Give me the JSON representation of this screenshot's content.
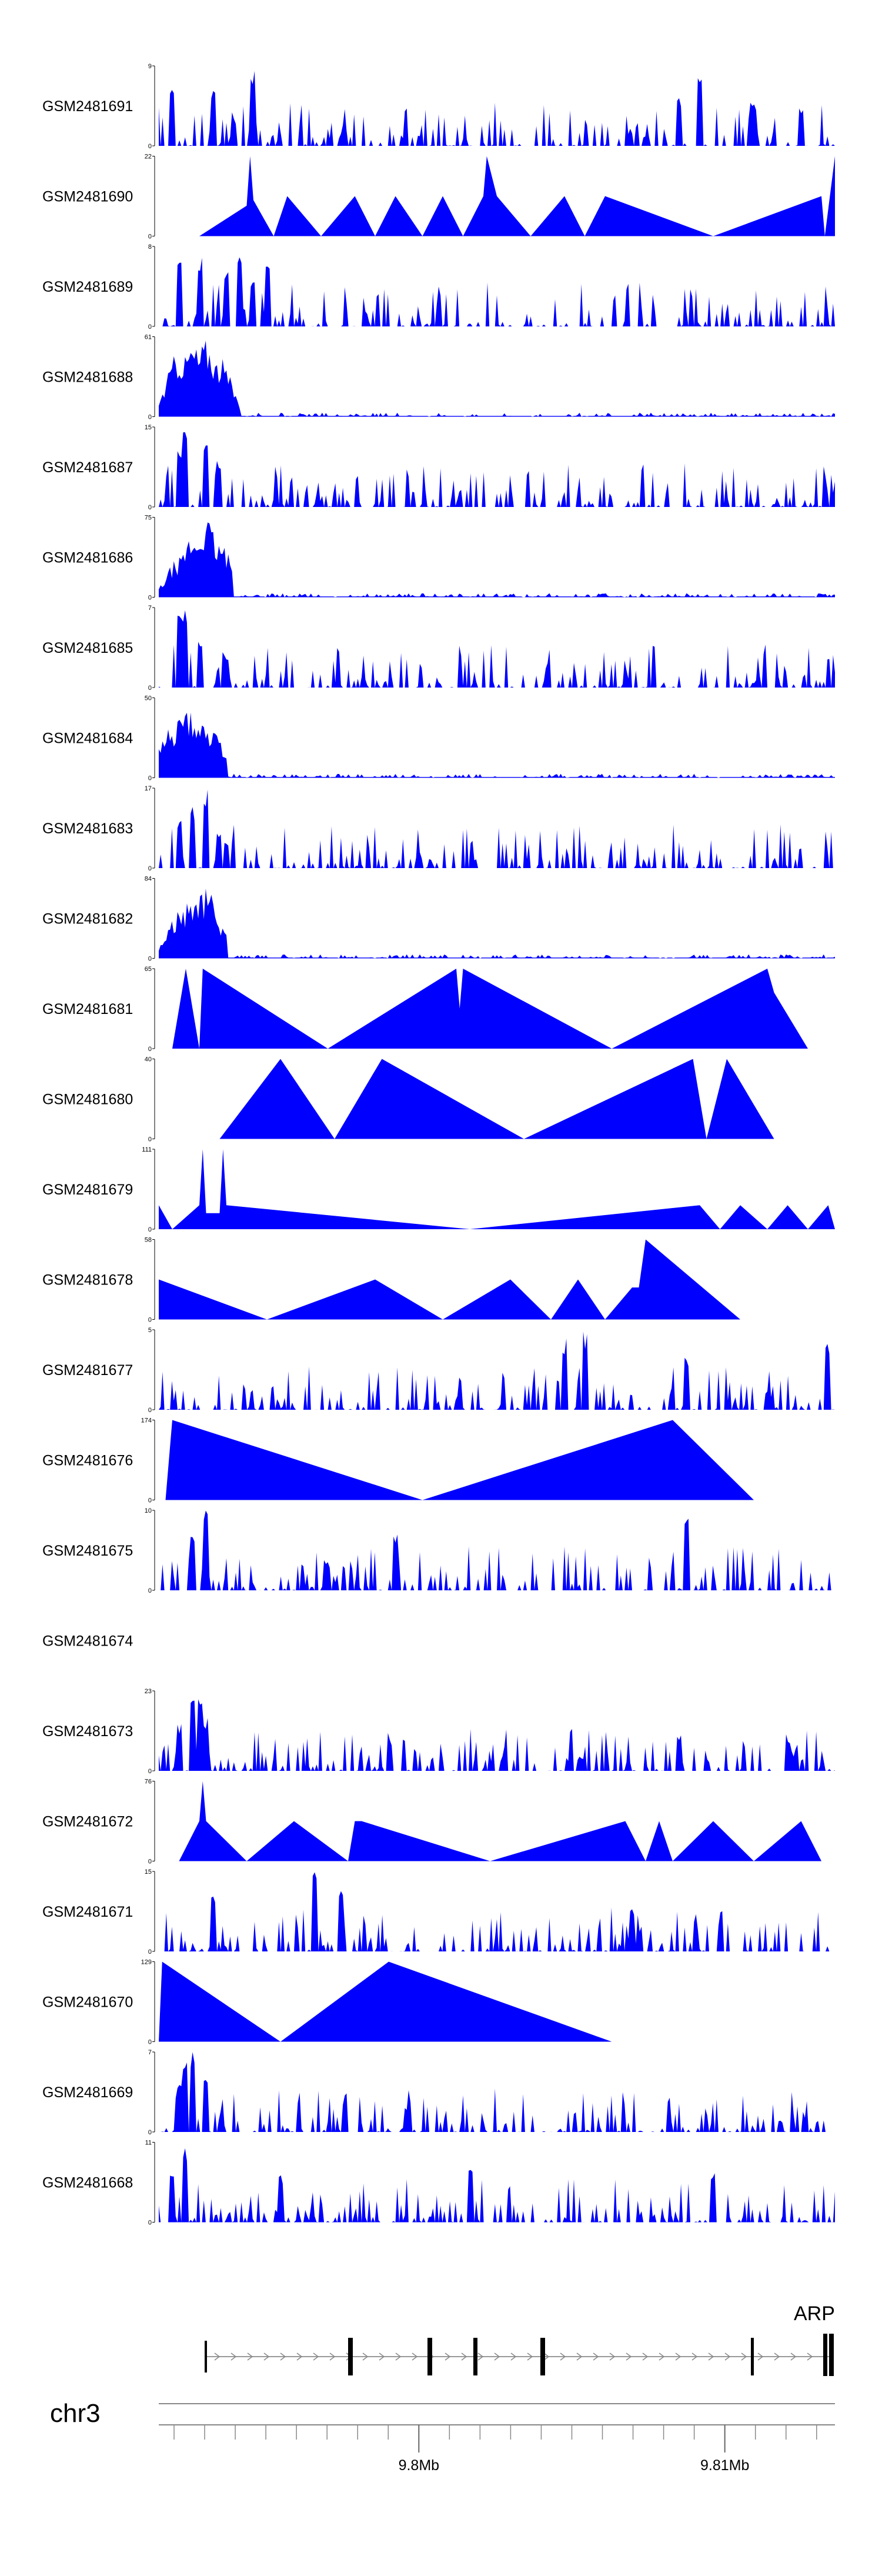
{
  "chart_data": {
    "type": "area",
    "title": "",
    "chromosome": "chr3",
    "gene_label": "ARP",
    "x_axis": {
      "ticks": [
        {
          "pos": 9.8,
          "label": "9.8Mb"
        },
        {
          "pos": 9.81,
          "label": "9.81Mb"
        }
      ],
      "range": [
        9.7915,
        9.8136
      ]
    },
    "fill_color": "#0000ff",
    "tracks": [
      {
        "name": "GSM2481691",
        "ymax": 9,
        "profile": "noise",
        "seed": 91,
        "peaks": [
          [
            0.02,
            0.85
          ],
          [
            0.08,
            0.7
          ],
          [
            0.14,
            0.95
          ],
          [
            0.77,
            0.6
          ],
          [
            0.8,
            1.0
          ],
          [
            0.88,
            0.55
          ],
          [
            0.95,
            0.5
          ]
        ]
      },
      {
        "name": "GSM2481690",
        "ymax": 22,
        "profile": "tri",
        "points": [
          [
            0.06,
            0
          ],
          [
            0.13,
            0.38
          ],
          [
            0.135,
            1.0
          ],
          [
            0.14,
            0.45
          ],
          [
            0.17,
            0
          ],
          [
            0.19,
            0.5
          ],
          [
            0.24,
            0
          ],
          [
            0.29,
            0.5
          ],
          [
            0.32,
            0
          ],
          [
            0.35,
            0.5
          ],
          [
            0.39,
            0
          ],
          [
            0.42,
            0.5
          ],
          [
            0.45,
            0
          ],
          [
            0.48,
            0.5
          ],
          [
            0.485,
            1.0
          ],
          [
            0.5,
            0.5
          ],
          [
            0.55,
            0
          ],
          [
            0.6,
            0.5
          ],
          [
            0.63,
            0
          ],
          [
            0.66,
            0.5
          ],
          [
            0.82,
            0
          ],
          [
            0.98,
            0.5
          ],
          [
            0.985,
            0
          ],
          [
            1.0,
            1.0
          ]
        ]
      },
      {
        "name": "GSM2481689",
        "ymax": 8,
        "profile": "noise",
        "seed": 89,
        "peaks": [
          [
            0.03,
            0.8
          ],
          [
            0.06,
            0.9
          ],
          [
            0.1,
            0.7
          ],
          [
            0.12,
            0.95
          ],
          [
            0.14,
            0.6
          ],
          [
            0.16,
            0.75
          ]
        ]
      },
      {
        "name": "GSM2481688",
        "ymax": 61,
        "profile": "burst",
        "seed": 88,
        "burst": [
          0.0,
          0.12
        ],
        "bumps": [
          [
            0.03,
            0.85
          ],
          [
            0.05,
            0.95
          ],
          [
            0.07,
            1.0
          ],
          [
            0.09,
            0.75
          ]
        ]
      },
      {
        "name": "GSM2481687",
        "ymax": 15,
        "profile": "noise",
        "seed": 87,
        "peaks": [
          [
            0.03,
            0.7
          ],
          [
            0.04,
            1.0
          ],
          [
            0.07,
            0.8
          ],
          [
            0.09,
            0.6
          ]
        ]
      },
      {
        "name": "GSM2481686",
        "ymax": 75,
        "profile": "burst",
        "seed": 86,
        "burst": [
          0.0,
          0.11
        ],
        "bumps": [
          [
            0.03,
            0.5
          ],
          [
            0.05,
            0.8
          ],
          [
            0.07,
            1.0
          ],
          [
            0.09,
            0.7
          ]
        ]
      },
      {
        "name": "GSM2481685",
        "ymax": 7,
        "profile": "noise",
        "seed": 85,
        "peaks": [
          [
            0.03,
            0.9
          ],
          [
            0.04,
            1.0
          ],
          [
            0.06,
            0.6
          ],
          [
            0.1,
            0.4
          ]
        ]
      },
      {
        "name": "GSM2481684",
        "ymax": 50,
        "profile": "burst",
        "seed": 84,
        "burst": [
          0.0,
          0.1
        ],
        "bumps": [
          [
            0.02,
            0.7
          ],
          [
            0.04,
            0.9
          ],
          [
            0.06,
            0.85
          ],
          [
            0.08,
            0.6
          ]
        ]
      },
      {
        "name": "GSM2481683",
        "ymax": 17,
        "profile": "noise",
        "seed": 83,
        "peaks": [
          [
            0.03,
            0.6
          ],
          [
            0.05,
            0.8
          ],
          [
            0.07,
            1.0
          ],
          [
            0.09,
            0.5
          ]
        ]
      },
      {
        "name": "GSM2481682",
        "ymax": 84,
        "profile": "burst",
        "seed": 82,
        "burst": [
          0.0,
          0.1
        ],
        "bumps": [
          [
            0.03,
            0.6
          ],
          [
            0.05,
            0.8
          ],
          [
            0.07,
            0.9
          ],
          [
            0.08,
            0.6
          ]
        ]
      },
      {
        "name": "GSM2481681",
        "ymax": 65,
        "profile": "tri",
        "points": [
          [
            0.02,
            0
          ],
          [
            0.04,
            1.0
          ],
          [
            0.06,
            0
          ],
          [
            0.065,
            1.0
          ],
          [
            0.25,
            0
          ],
          [
            0.44,
            1.0
          ],
          [
            0.445,
            0.5
          ],
          [
            0.45,
            1.0
          ],
          [
            0.67,
            0
          ],
          [
            0.9,
            1.0
          ],
          [
            0.91,
            0.7
          ],
          [
            0.96,
            0
          ]
        ]
      },
      {
        "name": "GSM2481680",
        "ymax": 40,
        "profile": "tri",
        "points": [
          [
            0.09,
            0
          ],
          [
            0.18,
            1.0
          ],
          [
            0.26,
            0
          ],
          [
            0.33,
            1.0
          ],
          [
            0.54,
            0
          ],
          [
            0.79,
            1.0
          ],
          [
            0.81,
            0
          ],
          [
            0.84,
            1.0
          ],
          [
            0.91,
            0
          ]
        ]
      },
      {
        "name": "GSM2481679",
        "ymax": 111,
        "profile": "tri",
        "points": [
          [
            0.0,
            0.3
          ],
          [
            0.02,
            0
          ],
          [
            0.06,
            0.3
          ],
          [
            0.065,
            1.0
          ],
          [
            0.07,
            0.2
          ],
          [
            0.09,
            0.2
          ],
          [
            0.095,
            1.0
          ],
          [
            0.1,
            0.3
          ],
          [
            0.46,
            0
          ],
          [
            0.8,
            0.3
          ],
          [
            0.83,
            0
          ],
          [
            0.86,
            0.3
          ],
          [
            0.9,
            0
          ],
          [
            0.93,
            0.3
          ],
          [
            0.96,
            0
          ],
          [
            0.99,
            0.3
          ],
          [
            1.0,
            0
          ]
        ]
      },
      {
        "name": "GSM2481678",
        "ymax": 58,
        "profile": "tri",
        "points": [
          [
            0.0,
            0.5
          ],
          [
            0.16,
            0
          ],
          [
            0.32,
            0.5
          ],
          [
            0.42,
            0
          ],
          [
            0.52,
            0.5
          ],
          [
            0.58,
            0
          ],
          [
            0.62,
            0.5
          ],
          [
            0.66,
            0
          ],
          [
            0.7,
            0.4
          ],
          [
            0.71,
            0.4
          ],
          [
            0.72,
            1.0
          ],
          [
            0.86,
            0
          ]
        ]
      },
      {
        "name": "GSM2481677",
        "ymax": 5,
        "profile": "noise",
        "seed": 77,
        "peaks": [
          [
            0.6,
            0.9
          ],
          [
            0.63,
            1.0
          ],
          [
            0.78,
            0.7
          ],
          [
            0.99,
            0.9
          ]
        ]
      },
      {
        "name": "GSM2481676",
        "ymax": 174,
        "profile": "tri",
        "points": [
          [
            0.01,
            0
          ],
          [
            0.02,
            1.0
          ],
          [
            0.39,
            0
          ],
          [
            0.76,
            1.0
          ],
          [
            0.88,
            0
          ]
        ]
      },
      {
        "name": "GSM2481675",
        "ymax": 10,
        "profile": "noise",
        "seed": 75,
        "peaks": [
          [
            0.05,
            0.7
          ],
          [
            0.07,
            1.0
          ],
          [
            0.35,
            0.7
          ],
          [
            0.78,
            1.0
          ]
        ]
      },
      {
        "name": "GSM2481674",
        "ymax": null,
        "profile": "empty"
      },
      {
        "name": "GSM2481673",
        "ymax": 23,
        "profile": "noise",
        "seed": 73,
        "peaks": [
          [
            0.03,
            0.6
          ],
          [
            0.05,
            0.9
          ],
          [
            0.06,
            1.0
          ],
          [
            0.07,
            0.7
          ],
          [
            0.77,
            0.5
          ]
        ]
      },
      {
        "name": "GSM2481672",
        "ymax": 76,
        "profile": "tri",
        "points": [
          [
            0.03,
            0
          ],
          [
            0.06,
            0.5
          ],
          [
            0.065,
            1.0
          ],
          [
            0.07,
            0.5
          ],
          [
            0.13,
            0
          ],
          [
            0.2,
            0.5
          ],
          [
            0.28,
            0
          ],
          [
            0.29,
            0.5
          ],
          [
            0.3,
            0.5
          ],
          [
            0.49,
            0
          ],
          [
            0.69,
            0.5
          ],
          [
            0.72,
            0
          ],
          [
            0.74,
            0.5
          ],
          [
            0.76,
            0
          ],
          [
            0.82,
            0.5
          ],
          [
            0.88,
            0
          ],
          [
            0.95,
            0.5
          ],
          [
            0.98,
            0
          ]
        ]
      },
      {
        "name": "GSM2481671",
        "ymax": 15,
        "profile": "noise",
        "seed": 71,
        "peaks": [
          [
            0.08,
            0.7
          ],
          [
            0.23,
            1.0
          ],
          [
            0.27,
            0.8
          ],
          [
            0.7,
            0.6
          ]
        ]
      },
      {
        "name": "GSM2481670",
        "ymax": 129,
        "profile": "tri",
        "points": [
          [
            0.0,
            0
          ],
          [
            0.005,
            1.0
          ],
          [
            0.18,
            0
          ],
          [
            0.34,
            1.0
          ],
          [
            0.67,
            0
          ]
        ]
      },
      {
        "name": "GSM2481669",
        "ymax": 7,
        "profile": "noise",
        "seed": 69,
        "peaks": [
          [
            0.03,
            0.7
          ],
          [
            0.04,
            0.9
          ],
          [
            0.05,
            1.0
          ],
          [
            0.07,
            0.8
          ]
        ]
      },
      {
        "name": "GSM2481668",
        "ymax": 11,
        "profile": "noise",
        "seed": 68,
        "peaks": [
          [
            0.02,
            0.6
          ],
          [
            0.04,
            1.0
          ],
          [
            0.18,
            0.6
          ],
          [
            0.46,
            0.7
          ],
          [
            0.82,
            0.7
          ]
        ]
      }
    ]
  }
}
